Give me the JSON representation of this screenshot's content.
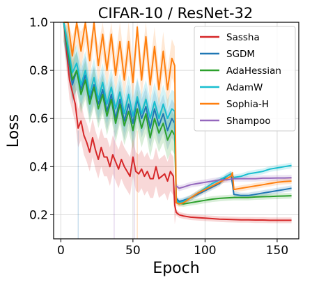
{
  "chart_data": {
    "type": "line",
    "title": "CIFAR-10 / ResNet-32",
    "xlabel": "Epoch",
    "ylabel": "Loss",
    "xlim": [
      -5,
      165
    ],
    "ylim": [
      0.1,
      1.0
    ],
    "xticks": [
      0,
      50,
      100,
      150
    ],
    "yticks": [
      0.2,
      0.4,
      0.6,
      0.8,
      1.0
    ],
    "xtick_labels": [
      "0",
      "50",
      "100",
      "150"
    ],
    "ytick_labels": [
      "0.2",
      "0.4",
      "0.6",
      "0.8",
      "1.0"
    ],
    "grid": true,
    "legend_position": "top-right",
    "series": [
      {
        "name": "Sassha",
        "color": "#d62728",
        "x": [
          2,
          4,
          6,
          8,
          10,
          12,
          14,
          16,
          18,
          20,
          22,
          24,
          26,
          28,
          30,
          32,
          34,
          36,
          38,
          40,
          42,
          44,
          46,
          48,
          50,
          52,
          54,
          56,
          58,
          60,
          62,
          64,
          66,
          68,
          70,
          72,
          74,
          76,
          78,
          79,
          80,
          82,
          85,
          90,
          95,
          100,
          105,
          110,
          115,
          120,
          125,
          130,
          135,
          140,
          145,
          150,
          155,
          160
        ],
        "y": [
          1.0,
          0.88,
          0.76,
          0.71,
          0.66,
          0.56,
          0.59,
          0.53,
          0.5,
          0.46,
          0.52,
          0.47,
          0.43,
          0.48,
          0.44,
          0.44,
          0.4,
          0.45,
          0.42,
          0.39,
          0.43,
          0.4,
          0.38,
          0.36,
          0.44,
          0.38,
          0.37,
          0.39,
          0.36,
          0.38,
          0.35,
          0.35,
          0.4,
          0.35,
          0.36,
          0.37,
          0.34,
          0.38,
          0.36,
          0.24,
          0.21,
          0.2,
          0.195,
          0.19,
          0.188,
          0.186,
          0.184,
          0.182,
          0.181,
          0.18,
          0.179,
          0.179,
          0.178,
          0.178,
          0.177,
          0.177,
          0.177,
          0.177
        ]
      },
      {
        "name": "SGDM",
        "color": "#1f77b4",
        "x": [
          2,
          5,
          8,
          11,
          14,
          17,
          20,
          23,
          26,
          29,
          32,
          35,
          38,
          41,
          44,
          47,
          50,
          53,
          56,
          59,
          62,
          65,
          68,
          71,
          74,
          77,
          79,
          80,
          82,
          85,
          90,
          95,
          100,
          105,
          110,
          115,
          118,
          120,
          125,
          130,
          135,
          140,
          145,
          150,
          155,
          160
        ],
        "y": [
          1.0,
          0.86,
          0.74,
          0.8,
          0.72,
          0.78,
          0.68,
          0.74,
          0.66,
          0.72,
          0.63,
          0.7,
          0.6,
          0.68,
          0.59,
          0.66,
          0.58,
          0.68,
          0.6,
          0.65,
          0.56,
          0.64,
          0.57,
          0.62,
          0.55,
          0.6,
          0.58,
          0.27,
          0.255,
          0.26,
          0.27,
          0.285,
          0.3,
          0.315,
          0.33,
          0.36,
          0.37,
          0.285,
          0.28,
          0.28,
          0.285,
          0.29,
          0.295,
          0.3,
          0.305,
          0.31
        ]
      },
      {
        "name": "AdaHessian",
        "color": "#2ca02c",
        "x": [
          2,
          5,
          8,
          11,
          14,
          17,
          20,
          23,
          26,
          29,
          32,
          35,
          38,
          41,
          44,
          47,
          50,
          53,
          56,
          59,
          62,
          65,
          68,
          71,
          74,
          77,
          79,
          80,
          82,
          85,
          90,
          95,
          100,
          105,
          110,
          115,
          120,
          125,
          130,
          135,
          140,
          145,
          150,
          155,
          160
        ],
        "y": [
          1.0,
          0.88,
          0.76,
          0.8,
          0.7,
          0.76,
          0.66,
          0.73,
          0.64,
          0.7,
          0.61,
          0.68,
          0.58,
          0.66,
          0.57,
          0.63,
          0.55,
          0.64,
          0.56,
          0.62,
          0.52,
          0.6,
          0.54,
          0.58,
          0.51,
          0.55,
          0.53,
          0.26,
          0.248,
          0.245,
          0.25,
          0.255,
          0.26,
          0.265,
          0.268,
          0.27,
          0.272,
          0.272,
          0.272,
          0.274,
          0.275,
          0.276,
          0.277,
          0.278,
          0.279
        ]
      },
      {
        "name": "AdamW",
        "color": "#17becf",
        "x": [
          2,
          5,
          8,
          11,
          14,
          17,
          20,
          23,
          26,
          29,
          32,
          35,
          38,
          41,
          44,
          47,
          50,
          53,
          56,
          59,
          62,
          65,
          68,
          71,
          74,
          77,
          79,
          80,
          82,
          85,
          90,
          95,
          100,
          105,
          110,
          115,
          118,
          120,
          125,
          130,
          135,
          140,
          145,
          150,
          155,
          160
        ],
        "y": [
          1.0,
          0.9,
          0.79,
          0.83,
          0.74,
          0.8,
          0.7,
          0.77,
          0.68,
          0.75,
          0.66,
          0.73,
          0.64,
          0.71,
          0.62,
          0.7,
          0.61,
          0.69,
          0.62,
          0.68,
          0.6,
          0.67,
          0.6,
          0.66,
          0.6,
          0.64,
          0.63,
          0.26,
          0.25,
          0.255,
          0.27,
          0.29,
          0.31,
          0.33,
          0.345,
          0.36,
          0.37,
          0.355,
          0.36,
          0.37,
          0.375,
          0.38,
          0.39,
          0.395,
          0.4,
          0.405
        ]
      },
      {
        "name": "Sophia-H",
        "color": "#ff7f0e",
        "x": [
          2,
          5,
          8,
          11,
          14,
          17,
          20,
          23,
          26,
          29,
          32,
          35,
          38,
          41,
          44,
          47,
          50,
          53,
          56,
          59,
          62,
          65,
          68,
          71,
          74,
          77,
          79,
          80,
          82,
          85,
          90,
          95,
          100,
          105,
          110,
          115,
          118,
          119,
          120,
          125,
          130,
          135,
          140,
          145,
          150,
          155,
          160
        ],
        "y": [
          1.0,
          1.0,
          0.86,
          1.0,
          0.88,
          1.0,
          0.84,
          1.0,
          0.82,
          0.95,
          0.8,
          0.95,
          0.78,
          0.92,
          0.76,
          0.92,
          0.75,
          0.98,
          0.76,
          0.94,
          0.74,
          0.9,
          0.72,
          0.88,
          0.72,
          0.85,
          0.82,
          0.25,
          0.245,
          0.25,
          0.27,
          0.29,
          0.305,
          0.32,
          0.335,
          0.35,
          0.36,
          0.375,
          0.305,
          0.31,
          0.315,
          0.32,
          0.325,
          0.33,
          0.335,
          0.338,
          0.34
        ]
      },
      {
        "name": "Shampoo",
        "color": "#9467bd",
        "x": [
          80,
          82,
          85,
          90,
          95,
          100,
          105,
          110,
          115,
          120,
          125,
          130,
          135,
          140,
          145,
          150,
          155,
          160
        ],
        "y": [
          0.32,
          0.31,
          0.315,
          0.325,
          0.33,
          0.335,
          0.34,
          0.345,
          0.345,
          0.35,
          0.35,
          0.35,
          0.35,
          0.352,
          0.352,
          0.353,
          0.353,
          0.354
        ]
      }
    ]
  }
}
